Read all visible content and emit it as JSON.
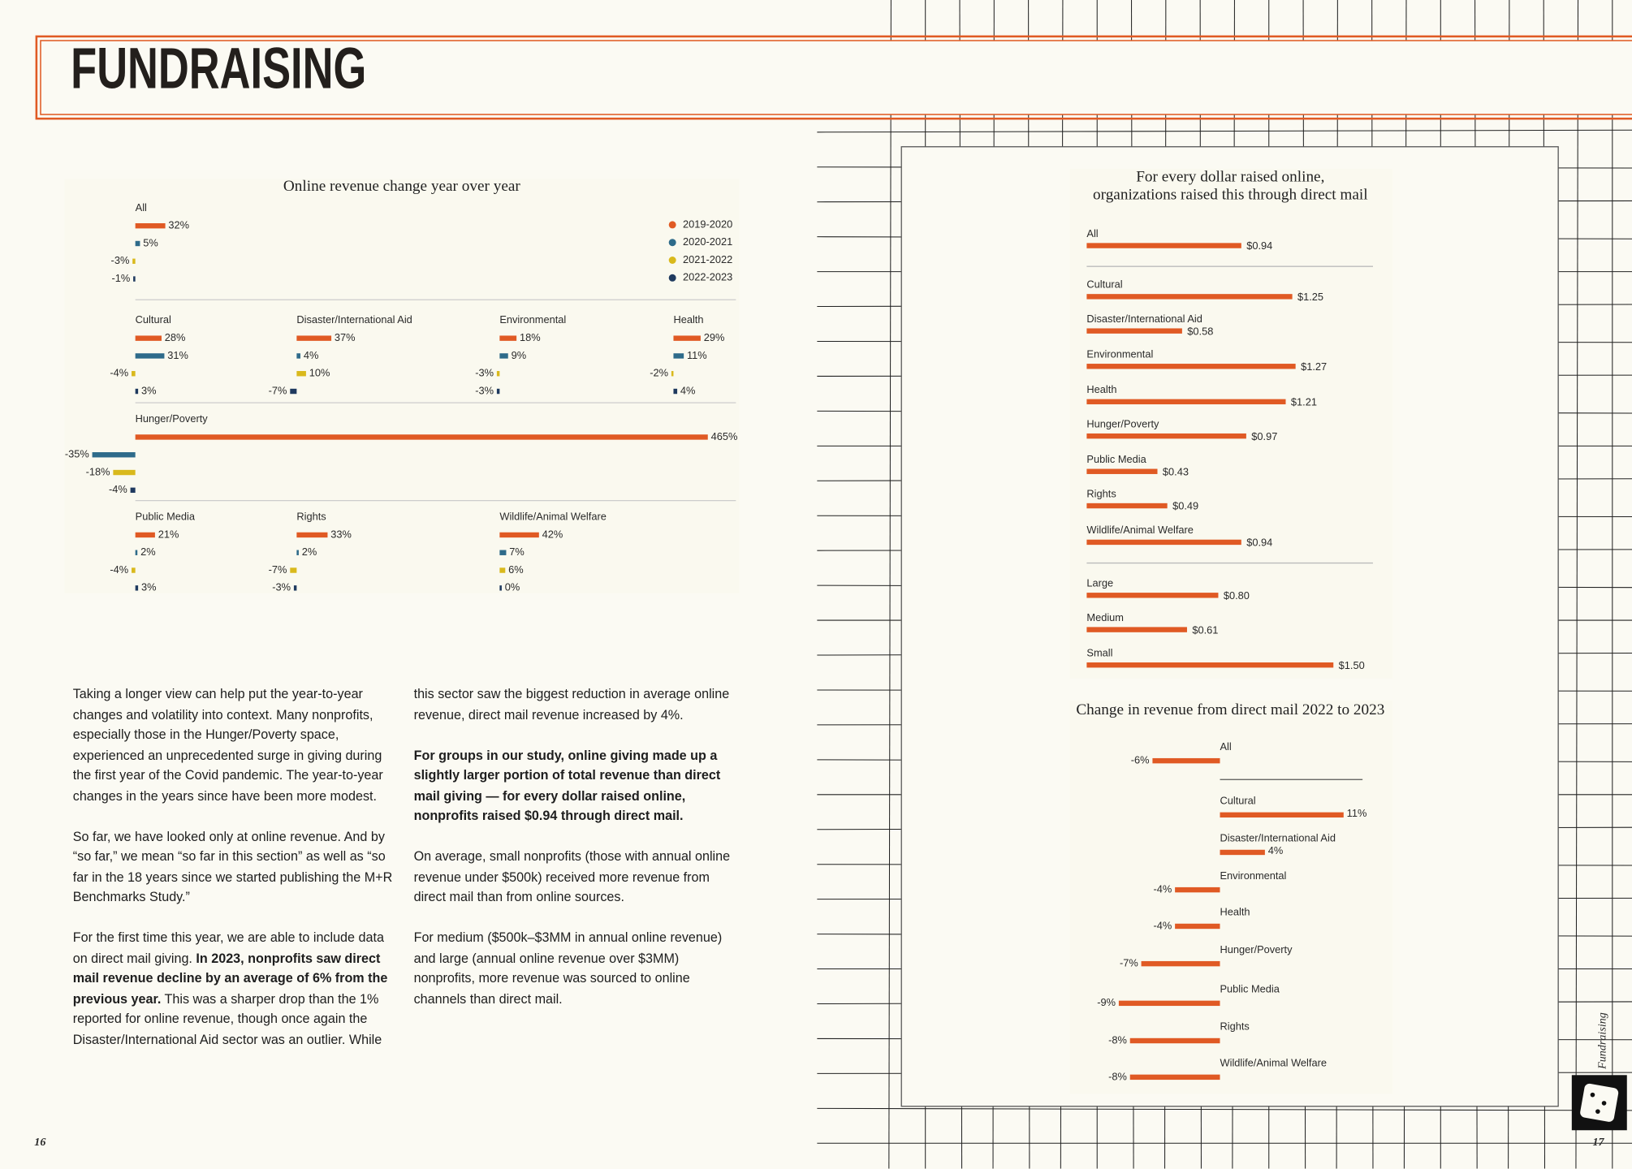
{
  "header": {
    "title": "FUNDRAISING"
  },
  "sidebar": {
    "label": "Fundraising"
  },
  "page_numbers": [
    "16",
    "17"
  ],
  "body": {
    "paragraphs": [
      [
        {
          "text": "Taking a longer view can help put the year-to-year changes and volatility into context. Many nonprofits, especially those in the Hunger/Poverty space, experienced an unprecedented surge in giving during the first year of the Covid pandemic. The year-to-year changes in the years since have been more modest."
        }
      ],
      [
        {
          "text": "So far, we have looked only at online revenue. And by “so far,” we mean “so far in this section” as well as “so far in the 18 years since we started publishing the M+R Benchmarks Study.”"
        }
      ],
      [
        {
          "text": "For the first time this year, we are able to include data on direct mail giving. "
        },
        {
          "text": "In 2023, nonprofits saw direct mail revenue decline by an average of 6% from the previous year.",
          "bold": true
        },
        {
          "text": " This was a sharper drop than the 1% reported for online revenue, though once again the Disaster/International Aid sector was an outlier. While this sector saw the biggest reduction in average online revenue, direct mail revenue increased by 4%."
        }
      ],
      [
        {
          "text": "For groups in our study, online giving made up a slightly larger portion of total revenue than direct mail giving — for every dollar raised online, nonprofits raised $0.94 through direct mail.",
          "bold": true
        }
      ],
      [
        {
          "text": "On average, small nonprofits (those with annual online revenue under $500k) received more revenue from direct mail than from online sources."
        }
      ],
      [
        {
          "text": "For medium ($500k–$3MM in annual online revenue) and large (annual online revenue over $3MM) nonprofits, more revenue was sourced to online channels than direct mail."
        }
      ]
    ]
  },
  "chart_data": [
    {
      "type": "small-multiple-bar",
      "title": "Online revenue change year over year",
      "categories": [
        "All",
        "Cultural",
        "Disaster/International Aid",
        "Environmental",
        "Health",
        "Hunger/Poverty",
        "Public Media",
        "Rights",
        "Wildlife/Animal Welfare"
      ],
      "series": [
        {
          "name": "2019-2020",
          "color": "#e05a24",
          "values": [
            32,
            28,
            37,
            18,
            29,
            465,
            21,
            33,
            42
          ],
          "value_labels": [
            "32%",
            "28%",
            "37%",
            "18%",
            "29%",
            "465%",
            "21%",
            "33%",
            "42%"
          ]
        },
        {
          "name": "2020-2021",
          "color": "#2e6b8a",
          "values": [
            5,
            31,
            4,
            9,
            11,
            -35,
            2,
            2,
            7
          ],
          "value_labels": [
            "5%",
            "31%",
            "4%",
            "9%",
            "11%",
            "-35%",
            "2%",
            "2%",
            "7%"
          ]
        },
        {
          "name": "2021-2022",
          "color": "#d9b91c",
          "values": [
            -3,
            -4,
            10,
            -3,
            -2,
            -18,
            -4,
            -7,
            6
          ],
          "value_labels": [
            "-3%",
            "-4%",
            "10%",
            "-3%",
            "-2%",
            "-18%",
            "-4%",
            "-7%",
            "6%"
          ]
        },
        {
          "name": "2022-2023",
          "color": "#1f3a5f",
          "values": [
            -1,
            3,
            -7,
            -3,
            4,
            -4,
            3,
            -3,
            0
          ],
          "value_labels": [
            "-1%",
            "3%",
            "-7%",
            "-3%",
            "4%",
            "-4%",
            "3%",
            "-3%",
            "0%"
          ]
        }
      ],
      "legend": "top-right"
    },
    {
      "type": "hbar",
      "title": [
        "For every dollar raised online,",
        "organizations raised this through direct mail"
      ],
      "categories": [
        "All",
        "Cultural",
        "Disaster/International Aid",
        "Environmental",
        "Health",
        "Hunger/Poverty",
        "Public Media",
        "Rights",
        "Wildlife/Animal Welfare",
        "Large",
        "Medium",
        "Small"
      ],
      "values": [
        0.94,
        1.25,
        0.58,
        1.27,
        1.21,
        0.97,
        0.43,
        0.49,
        0.94,
        0.8,
        0.61,
        1.5
      ],
      "value_labels": [
        "$0.94",
        "$1.25",
        "$0.58",
        "$1.27",
        "$1.21",
        "$0.97",
        "$0.43",
        "$0.49",
        "$0.94",
        "$0.80",
        "$0.61",
        "$1.50"
      ],
      "color": "#e05a24"
    },
    {
      "type": "diverging-bar",
      "title": "Change in revenue from direct mail 2022 to 2023",
      "categories": [
        "All",
        "Cultural",
        "Disaster/International Aid",
        "Environmental",
        "Health",
        "Hunger/Poverty",
        "Public Media",
        "Rights",
        "Wildlife/Animal Welfare"
      ],
      "values": [
        -6,
        11,
        4,
        -4,
        -4,
        -7,
        -9,
        -8,
        -8
      ],
      "value_labels": [
        "-6%",
        "11%",
        "4%",
        "-4%",
        "-4%",
        "-7%",
        "-9%",
        "-8%",
        "-8%"
      ],
      "color": "#e05a24"
    }
  ]
}
